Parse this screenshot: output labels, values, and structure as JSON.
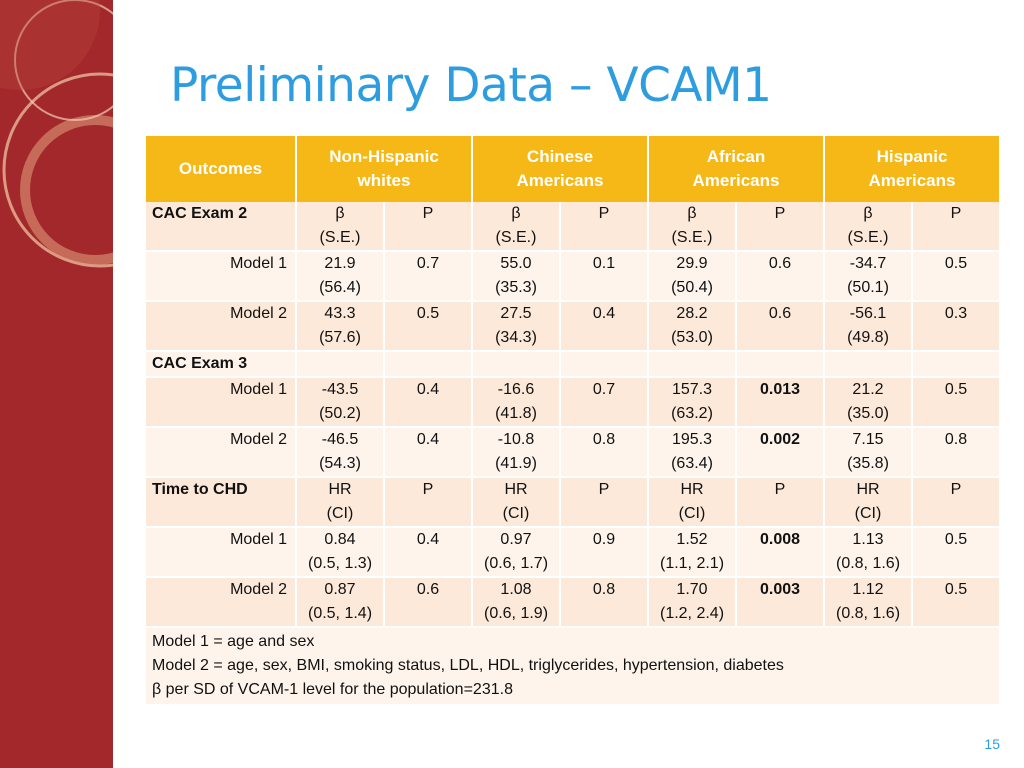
{
  "slide": {
    "title": "Preliminary Data – VCAM1",
    "page_number": "15"
  },
  "table": {
    "header": {
      "outcomes": "Outcomes",
      "groups": [
        {
          "line1": "Non-Hispanic",
          "line2": "whites"
        },
        {
          "line1": "Chinese",
          "line2": "Americans"
        },
        {
          "line1": "African",
          "line2": "Americans"
        },
        {
          "line1": "Hispanic",
          "line2": "Americans"
        }
      ]
    },
    "rows": [
      {
        "type": "section",
        "label": "CAC Exam 2",
        "band": "a",
        "cells": [
          [
            "β",
            "(S.E.)"
          ],
          [
            "P"
          ],
          [
            "β",
            "(S.E.)"
          ],
          [
            "P"
          ],
          [
            "β",
            "(S.E.)"
          ],
          [
            "P"
          ],
          [
            "β",
            "(S.E.)"
          ],
          [
            "P"
          ]
        ]
      },
      {
        "type": "model",
        "label": "Model 1",
        "band": "b",
        "cells": [
          [
            "21.9",
            "(56.4)"
          ],
          [
            "0.7"
          ],
          [
            "55.0",
            "(35.3)"
          ],
          [
            "0.1"
          ],
          [
            "29.9",
            "(50.4)"
          ],
          [
            "0.6"
          ],
          [
            "-34.7",
            "(50.1)"
          ],
          [
            "0.5"
          ]
        ]
      },
      {
        "type": "model",
        "label": "Model 2",
        "band": "a",
        "cells": [
          [
            "43.3",
            "(57.6)"
          ],
          [
            "0.5"
          ],
          [
            "27.5",
            "(34.3)"
          ],
          [
            "0.4"
          ],
          [
            "28.2",
            "(53.0)"
          ],
          [
            "0.6"
          ],
          [
            "-56.1",
            "(49.8)"
          ],
          [
            "0.3"
          ]
        ]
      },
      {
        "type": "section",
        "label": "CAC Exam 3",
        "band": "b",
        "cells": [
          [
            ""
          ],
          [
            ""
          ],
          [
            ""
          ],
          [
            ""
          ],
          [
            ""
          ],
          [
            ""
          ],
          [
            ""
          ],
          [
            ""
          ]
        ]
      },
      {
        "type": "model",
        "label": "Model 1",
        "band": "a",
        "cells": [
          [
            "-43.5",
            "(50.2)"
          ],
          [
            "0.4"
          ],
          [
            "-16.6",
            "(41.8)"
          ],
          [
            "0.7"
          ],
          [
            "157.3",
            "(63.2)"
          ],
          [
            "0.013"
          ],
          [
            "21.2",
            "(35.0)"
          ],
          [
            "0.5"
          ]
        ],
        "bold": [
          5
        ]
      },
      {
        "type": "model",
        "label": "Model 2",
        "band": "b",
        "cells": [
          [
            "-46.5",
            "(54.3)"
          ],
          [
            "0.4"
          ],
          [
            "-10.8",
            "(41.9)"
          ],
          [
            "0.8"
          ],
          [
            "195.3",
            "(63.4)"
          ],
          [
            "0.002"
          ],
          [
            "7.15",
            "(35.8)"
          ],
          [
            "0.8"
          ]
        ],
        "bold": [
          5
        ]
      },
      {
        "type": "section",
        "label": "Time to  CHD",
        "band": "a",
        "cells": [
          [
            "HR",
            "(CI)"
          ],
          [
            "P"
          ],
          [
            "HR",
            "(CI)"
          ],
          [
            "P"
          ],
          [
            "HR",
            "(CI)"
          ],
          [
            "P"
          ],
          [
            "HR",
            "(CI)"
          ],
          [
            "P"
          ]
        ]
      },
      {
        "type": "model",
        "label": "Model 1",
        "band": "b",
        "cells": [
          [
            "0.84",
            "(0.5, 1.3)"
          ],
          [
            "0.4"
          ],
          [
            "0.97",
            "(0.6, 1.7)"
          ],
          [
            "0.9"
          ],
          [
            "1.52",
            "(1.1, 2.1)"
          ],
          [
            "0.008"
          ],
          [
            "1.13",
            "(0.8, 1.6)"
          ],
          [
            "0.5"
          ]
        ],
        "bold": [
          5
        ]
      },
      {
        "type": "model",
        "label": "Model 2",
        "band": "a",
        "cells": [
          [
            "0.87",
            "(0.5, 1.4)"
          ],
          [
            "0.6"
          ],
          [
            "1.08",
            "(0.6, 1.9)"
          ],
          [
            "0.8"
          ],
          [
            "1.70",
            "(1.2, 2.4)"
          ],
          [
            "0.003"
          ],
          [
            "1.12",
            "(0.8, 1.6)"
          ],
          [
            "0.5"
          ]
        ],
        "bold": [
          5
        ]
      }
    ],
    "notes": [
      "Model 1 = age and sex",
      "Model 2 = age, sex, BMI, smoking status, LDL, HDL, triglycerides, hypertension, diabetes",
      "β per SD of VCAM-1 level for the population=231.8"
    ]
  },
  "colors": {
    "accent_blue": "#2e9de0",
    "header_gold": "#f5b817",
    "sidebar_red": "#a3282b"
  }
}
